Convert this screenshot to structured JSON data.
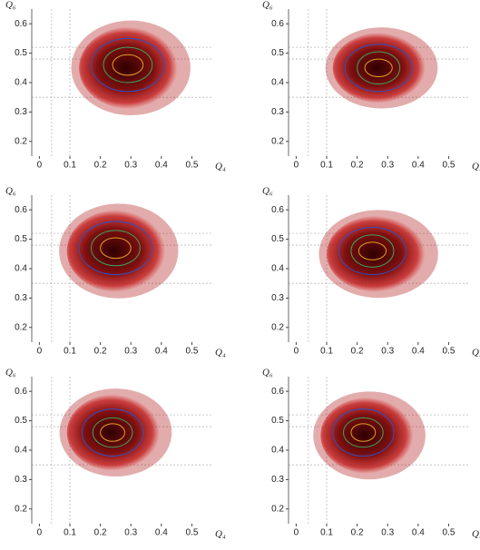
{
  "chart_data": [
    {
      "type": "density",
      "xlabel": "Q₄",
      "ylabel": "Q₆",
      "xlim": [
        -0.025,
        0.57
      ],
      "ylim": [
        0.15,
        0.65
      ],
      "xticks": [
        0,
        0.1,
        0.2,
        0.3,
        0.4,
        0.5
      ],
      "yticks": [
        0.2,
        0.3,
        0.4,
        0.5,
        0.6
      ],
      "ref_x": [
        0.04,
        0.1
      ],
      "ref_y": [
        0.35,
        0.48,
        0.52
      ],
      "cloud": {
        "cx": 0.3,
        "cy": 0.45,
        "rx": 0.17,
        "ry": 0.14,
        "color": "#b01010"
      },
      "contours": [
        {
          "cx": 0.29,
          "cy": 0.46,
          "rx": 0.12,
          "ry": 0.09,
          "color": "#3050c0"
        },
        {
          "cx": 0.29,
          "cy": 0.46,
          "rx": 0.08,
          "ry": 0.06,
          "color": "#40a060"
        },
        {
          "cx": 0.29,
          "cy": 0.46,
          "rx": 0.05,
          "ry": 0.035,
          "color": "#e0a020"
        }
      ]
    },
    {
      "type": "density",
      "xlabel": "Q₄",
      "ylabel": "Q₆",
      "xlim": [
        -0.025,
        0.57
      ],
      "ylim": [
        0.15,
        0.65
      ],
      "xticks": [
        0,
        0.1,
        0.2,
        0.3,
        0.4,
        0.5
      ],
      "yticks": [
        0.2,
        0.3,
        0.4,
        0.5,
        0.6
      ],
      "ref_x": [
        0.04,
        0.1
      ],
      "ref_y": [
        0.35,
        0.48,
        0.52
      ],
      "cloud": {
        "cx": 0.28,
        "cy": 0.45,
        "rx": 0.16,
        "ry": 0.12,
        "color": "#b01010"
      },
      "contours": [
        {
          "cx": 0.27,
          "cy": 0.45,
          "rx": 0.11,
          "ry": 0.08,
          "color": "#3050c0"
        },
        {
          "cx": 0.27,
          "cy": 0.45,
          "rx": 0.07,
          "ry": 0.055,
          "color": "#40a060"
        },
        {
          "cx": 0.27,
          "cy": 0.45,
          "rx": 0.045,
          "ry": 0.03,
          "color": "#e0a020"
        }
      ]
    },
    {
      "type": "density",
      "xlabel": "Q₄",
      "ylabel": "Q₆",
      "xlim": [
        -0.025,
        0.57
      ],
      "ylim": [
        0.15,
        0.65
      ],
      "xticks": [
        0,
        0.1,
        0.2,
        0.3,
        0.4,
        0.5
      ],
      "yticks": [
        0.2,
        0.3,
        0.4,
        0.5,
        0.6
      ],
      "ref_x": [
        0.04,
        0.1
      ],
      "ref_y": [
        0.35,
        0.48,
        0.52
      ],
      "cloud": {
        "cx": 0.26,
        "cy": 0.46,
        "rx": 0.17,
        "ry": 0.14,
        "color": "#b01010"
      },
      "contours": [
        {
          "cx": 0.25,
          "cy": 0.47,
          "rx": 0.12,
          "ry": 0.09,
          "color": "#3050c0"
        },
        {
          "cx": 0.25,
          "cy": 0.47,
          "rx": 0.08,
          "ry": 0.06,
          "color": "#40a060"
        },
        {
          "cx": 0.25,
          "cy": 0.47,
          "rx": 0.05,
          "ry": 0.035,
          "color": "#e0a020"
        }
      ]
    },
    {
      "type": "density",
      "xlabel": "Q₄",
      "ylabel": "Q₆",
      "xlim": [
        -0.025,
        0.57
      ],
      "ylim": [
        0.15,
        0.65
      ],
      "xticks": [
        0,
        0.1,
        0.2,
        0.3,
        0.4,
        0.5
      ],
      "yticks": [
        0.2,
        0.3,
        0.4,
        0.5,
        0.6
      ],
      "ref_x": [
        0.04,
        0.1
      ],
      "ref_y": [
        0.35,
        0.48,
        0.52
      ],
      "cloud": {
        "cx": 0.27,
        "cy": 0.45,
        "rx": 0.17,
        "ry": 0.13,
        "color": "#b01010"
      },
      "contours": [
        {
          "cx": 0.25,
          "cy": 0.46,
          "rx": 0.11,
          "ry": 0.08,
          "color": "#3050c0"
        },
        {
          "cx": 0.25,
          "cy": 0.46,
          "rx": 0.07,
          "ry": 0.055,
          "color": "#40a060"
        },
        {
          "cx": 0.25,
          "cy": 0.46,
          "rx": 0.045,
          "ry": 0.03,
          "color": "#e0a020"
        }
      ]
    },
    {
      "type": "density",
      "xlabel": "Q₄",
      "ylabel": "Q₆",
      "xlim": [
        -0.025,
        0.57
      ],
      "ylim": [
        0.15,
        0.65
      ],
      "xticks": [
        0,
        0.1,
        0.2,
        0.3,
        0.4,
        0.5
      ],
      "yticks": [
        0.2,
        0.3,
        0.4,
        0.5,
        0.6
      ],
      "ref_x": [
        0.04,
        0.1
      ],
      "ref_y": [
        0.35,
        0.48,
        0.52
      ],
      "cloud": {
        "cx": 0.25,
        "cy": 0.46,
        "rx": 0.16,
        "ry": 0.13,
        "color": "#b01010"
      },
      "contours": [
        {
          "cx": 0.24,
          "cy": 0.46,
          "rx": 0.1,
          "ry": 0.08,
          "color": "#3050c0"
        },
        {
          "cx": 0.24,
          "cy": 0.46,
          "rx": 0.065,
          "ry": 0.05,
          "color": "#40a060"
        },
        {
          "cx": 0.24,
          "cy": 0.46,
          "rx": 0.04,
          "ry": 0.03,
          "color": "#e0a020"
        }
      ]
    },
    {
      "type": "density",
      "xlabel": "Q₄",
      "ylabel": "Q₆",
      "xlim": [
        -0.025,
        0.57
      ],
      "ylim": [
        0.15,
        0.65
      ],
      "xticks": [
        0,
        0.1,
        0.2,
        0.3,
        0.4,
        0.5
      ],
      "yticks": [
        0.2,
        0.3,
        0.4,
        0.5,
        0.6
      ],
      "ref_x": [
        0.04,
        0.1
      ],
      "ref_y": [
        0.35,
        0.48,
        0.52
      ],
      "cloud": {
        "cx": 0.24,
        "cy": 0.45,
        "rx": 0.16,
        "ry": 0.13,
        "color": "#b01010"
      },
      "contours": [
        {
          "cx": 0.22,
          "cy": 0.46,
          "rx": 0.1,
          "ry": 0.08,
          "color": "#3050c0"
        },
        {
          "cx": 0.22,
          "cy": 0.46,
          "rx": 0.065,
          "ry": 0.05,
          "color": "#40a060"
        },
        {
          "cx": 0.22,
          "cy": 0.46,
          "rx": 0.04,
          "ry": 0.03,
          "color": "#e0a020"
        }
      ]
    }
  ]
}
